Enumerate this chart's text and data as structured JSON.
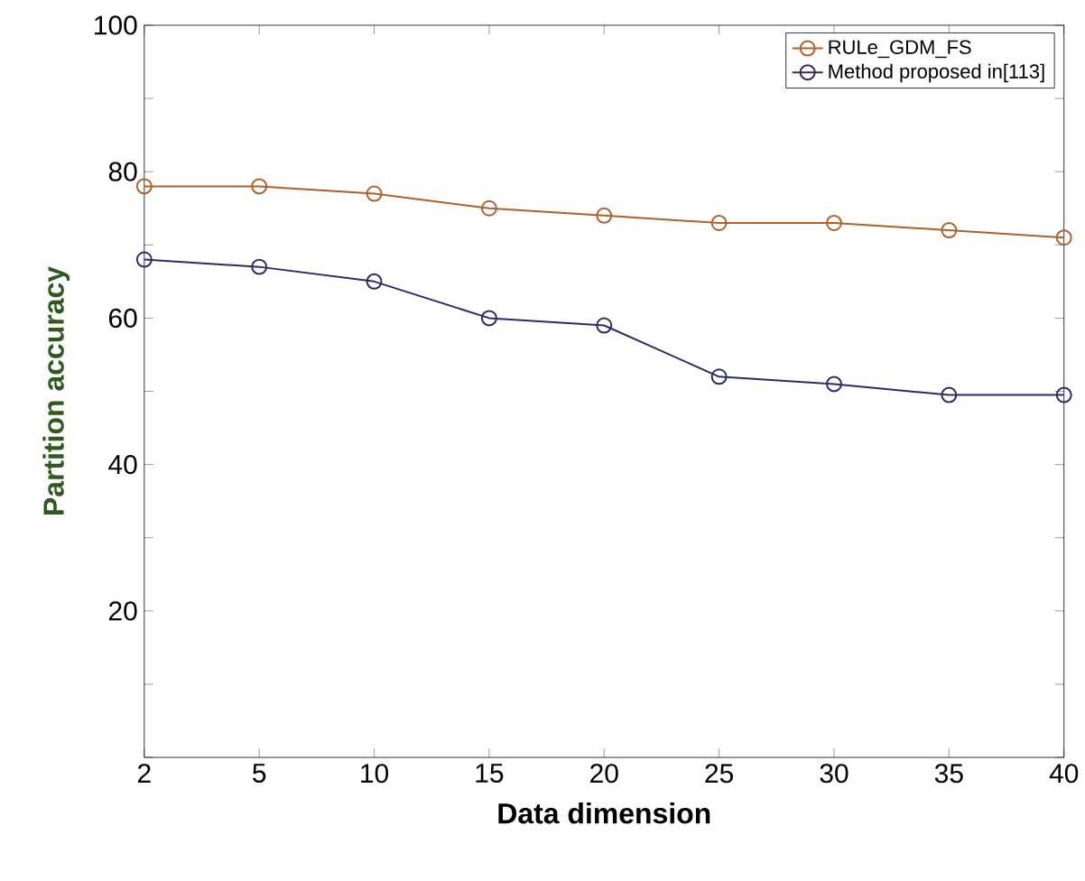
{
  "chart_data": {
    "type": "line",
    "xlabel": "Data dimension",
    "ylabel": "Partition accuracy",
    "categories": [
      "2",
      "5",
      "10",
      "15",
      "20",
      "25",
      "30",
      "35",
      "40"
    ],
    "ylim": [
      0,
      100
    ],
    "yticks": [
      {
        "value": 0,
        "label": null
      },
      {
        "value": 10,
        "label": null
      },
      20,
      {
        "value": 30,
        "label": null
      },
      40,
      {
        "value": 50,
        "label": null
      },
      60,
      {
        "value": 70,
        "label": null
      },
      80,
      {
        "value": 90,
        "label": null
      },
      100
    ],
    "series": [
      {
        "name": "RULe_GDM_FS",
        "color": "#b0602a",
        "values": [
          78,
          78,
          77,
          75,
          74,
          73,
          73,
          72,
          71
        ]
      },
      {
        "name": "Method proposed in[113]",
        "color": "#2c2c66",
        "values": [
          68,
          67,
          65,
          60,
          59,
          52,
          51,
          49.5,
          49.5
        ]
      }
    ],
    "marker": "circle",
    "line_style": "solid",
    "legend": "top right",
    "grid": false
  }
}
